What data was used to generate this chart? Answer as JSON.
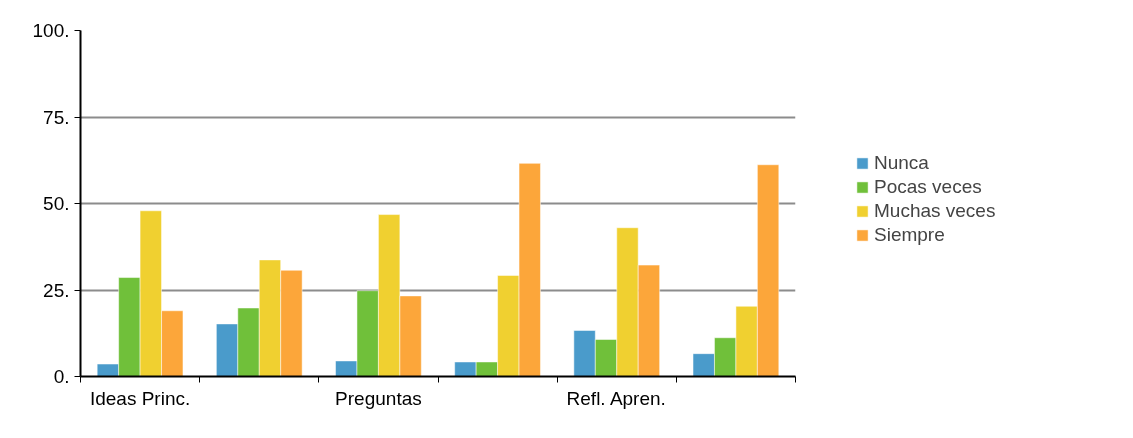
{
  "chart_data": {
    "type": "bar",
    "categories": [
      "Ideas Princ.",
      null,
      "Preguntas",
      null,
      "Refl. Apren.",
      null
    ],
    "series": [
      {
        "name": "Nunca",
        "color": "#4a9bcb",
        "values": [
          3.6,
          15.2,
          4.5,
          4.2,
          13.3,
          6.6
        ]
      },
      {
        "name": "Pocas veces",
        "color": "#70c03a",
        "values": [
          28.6,
          19.8,
          24.8,
          4.2,
          10.7,
          11.2
        ]
      },
      {
        "name": "Muchas veces",
        "color": "#f0d030",
        "values": [
          47.9,
          33.7,
          46.8,
          29.2,
          43.0,
          20.3
        ]
      },
      {
        "name": "Siempre",
        "color": "#fca63a",
        "values": [
          19.0,
          30.7,
          23.3,
          61.6,
          32.2,
          61.2
        ]
      }
    ],
    "ylim": [
      0,
      100
    ],
    "yticks": [
      {
        "value": 0,
        "label": "0."
      },
      {
        "value": 25,
        "label": "25."
      },
      {
        "value": 50,
        "label": "50."
      },
      {
        "value": 75,
        "label": "75."
      },
      {
        "value": 100,
        "label": "100."
      }
    ],
    "grid": "y",
    "legend": "right"
  }
}
